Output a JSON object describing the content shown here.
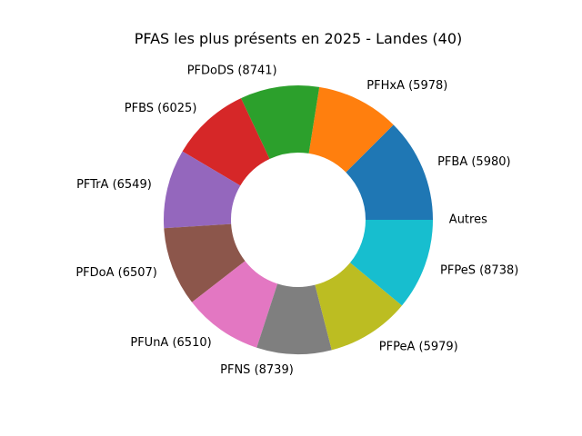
{
  "chart_data": {
    "type": "pie",
    "style": "donut",
    "title": "PFAS les plus présents en 2025 - Landes (40)",
    "start_angle_deg": 0,
    "direction": "counterclockwise",
    "slices": [
      {
        "label": "PFBA (5980)",
        "value": 12.5,
        "color": "#1f77b4"
      },
      {
        "label": "PFHxA (5978)",
        "value": 10.0,
        "color": "#ff7f0e"
      },
      {
        "label": "PFDoDS (8741)",
        "value": 9.5,
        "color": "#2ca02c"
      },
      {
        "label": "PFBS (6025)",
        "value": 9.5,
        "color": "#d62728"
      },
      {
        "label": "PFTrA (6549)",
        "value": 9.5,
        "color": "#9467bd"
      },
      {
        "label": "PFDoA (6507)",
        "value": 9.5,
        "color": "#8c564b"
      },
      {
        "label": "PFUnA (6510)",
        "value": 9.5,
        "color": "#e377c2"
      },
      {
        "label": "PFNS (8739)",
        "value": 9.0,
        "color": "#7f7f7f"
      },
      {
        "label": "PFPeA (5979)",
        "value": 10.0,
        "color": "#bcbd22"
      },
      {
        "label": "PFPeS (8738)",
        "value": 11.0,
        "color": "#17becf"
      },
      {
        "label": "Autres",
        "value": 0,
        "color": "#ffffff"
      }
    ]
  }
}
